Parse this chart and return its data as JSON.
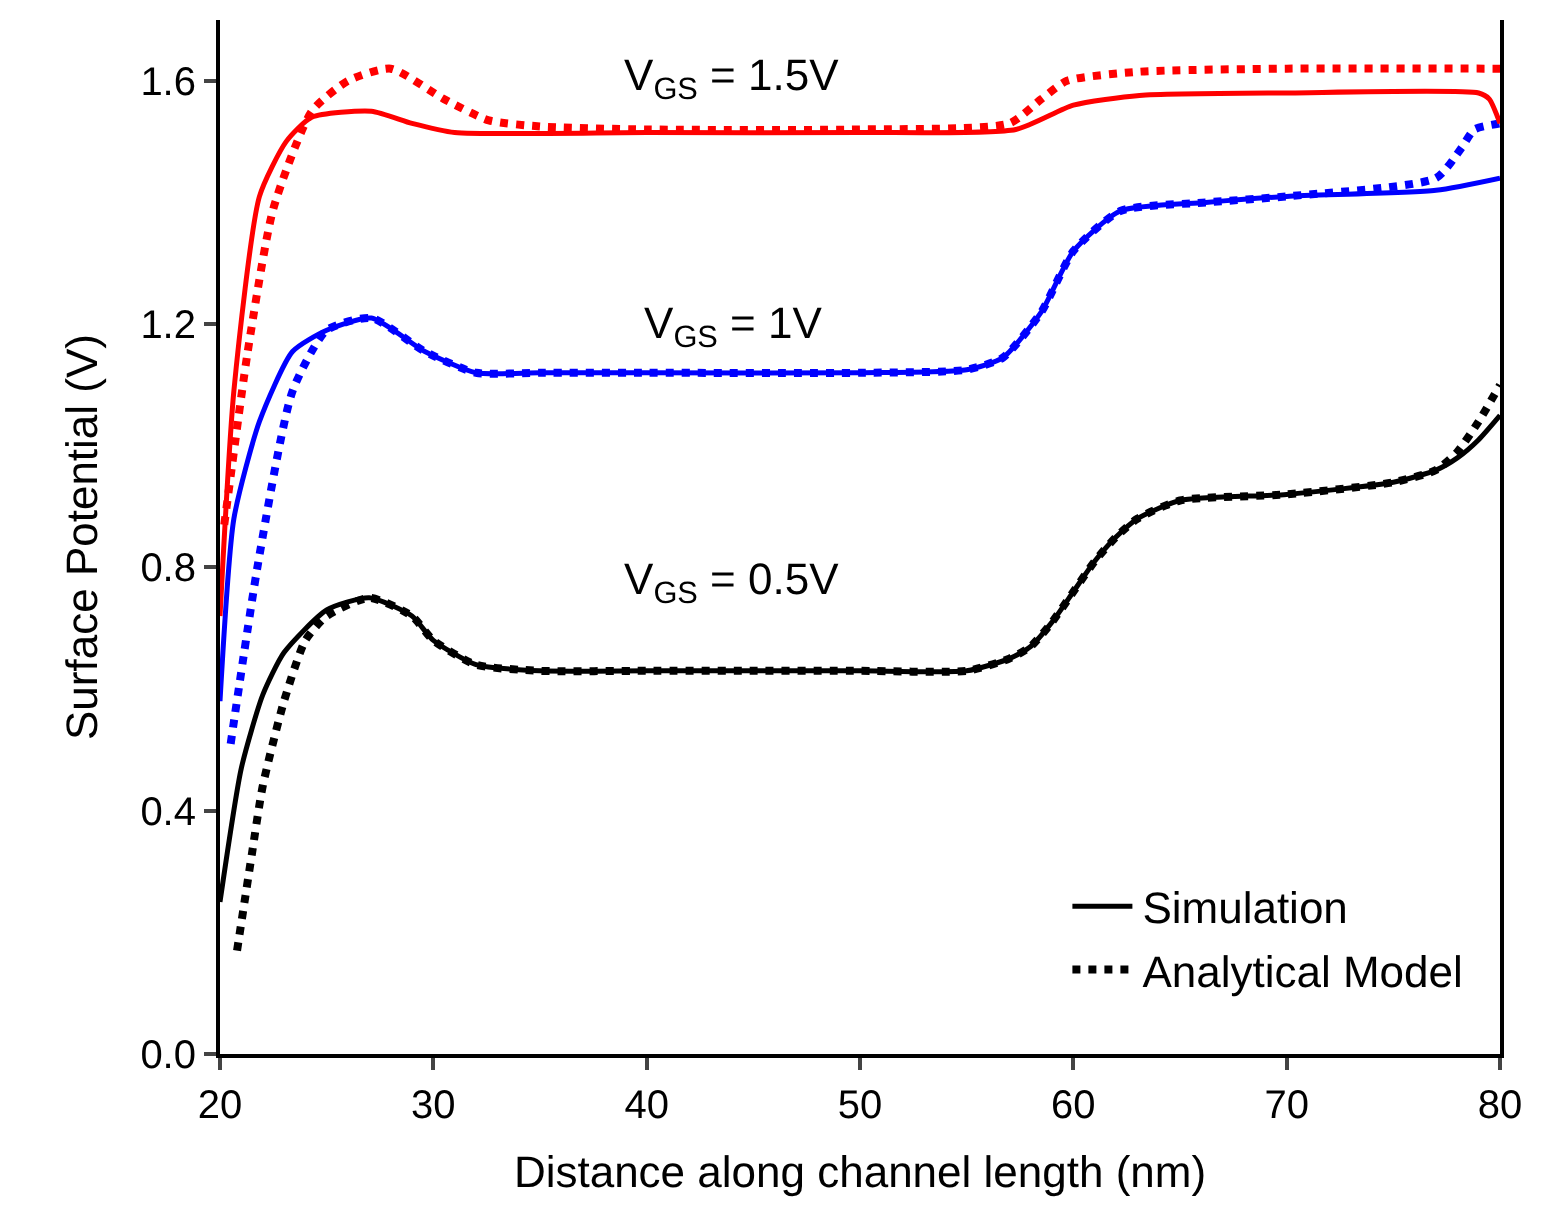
{
  "chart_data": {
    "type": "line",
    "xlabel": "Distance along channel length (nm)",
    "ylabel": "Surface Potential (V)",
    "xlim": [
      20,
      80
    ],
    "xticks": [
      20,
      30,
      40,
      50,
      60,
      70,
      80
    ],
    "ylim": [
      0,
      1.7
    ],
    "yticks": [
      {
        "value": 0,
        "label": "0.0"
      },
      0.4,
      0.8,
      1.2,
      1.6
    ],
    "legend": "bottom right",
    "marker": "none",
    "series": [
      {
        "name": "Simulation",
        "color": "#000000",
        "line_style": "solid",
        "x": [
          20,
          21,
          22,
          23,
          25,
          27,
          29,
          30,
          32,
          35,
          40,
          45,
          50,
          55,
          57,
          58,
          59,
          60,
          61,
          62,
          63,
          65,
          70,
          75,
          77,
          78,
          79,
          80
        ],
        "values": [
          0.25,
          0.47,
          0.59,
          0.66,
          0.73,
          0.75,
          0.72,
          0.68,
          0.64,
          0.63,
          0.63,
          0.63,
          0.63,
          0.63,
          0.65,
          0.67,
          0.71,
          0.76,
          0.81,
          0.85,
          0.88,
          0.91,
          0.92,
          0.94,
          0.96,
          0.98,
          1.01,
          1.05
        ]
      },
      {
        "name": "Analytical Model",
        "color": "#000000",
        "line_style": "dotted",
        "x": [
          20.8,
          21.5,
          22,
          23,
          24,
          25,
          27,
          29,
          30,
          32,
          35,
          40,
          45,
          50,
          55,
          57,
          58,
          59,
          60,
          61,
          62,
          63,
          65,
          70,
          75,
          77,
          78,
          79,
          80
        ],
        "values": [
          0.17,
          0.33,
          0.44,
          0.58,
          0.68,
          0.72,
          0.75,
          0.72,
          0.68,
          0.64,
          0.63,
          0.63,
          0.63,
          0.63,
          0.63,
          0.65,
          0.67,
          0.71,
          0.76,
          0.81,
          0.85,
          0.88,
          0.91,
          0.92,
          0.94,
          0.96,
          0.99,
          1.04,
          1.1
        ]
      },
      {
        "color": "#0000ff",
        "line_style": "solid",
        "x": [
          20,
          20.65,
          21.85,
          23.4,
          25,
          27.1,
          29.6,
          32,
          35,
          40,
          50,
          55,
          56.7,
          58.5,
          60,
          62.2,
          66.2,
          70,
          77,
          80
        ],
        "values": [
          0.58,
          0.88,
          1.04,
          1.155,
          1.19,
          1.21,
          1.155,
          1.12,
          1.12,
          1.12,
          1.12,
          1.125,
          1.145,
          1.22,
          1.32,
          1.386,
          1.4,
          1.41,
          1.42,
          1.44
        ]
      },
      {
        "color": "#0000ff",
        "line_style": "dotted",
        "x": [
          20.5,
          21.8,
          23.4,
          25,
          27.1,
          29.6,
          32,
          35,
          40,
          50,
          55,
          56.7,
          58.5,
          60,
          62.2,
          66.2,
          70,
          77,
          78.2,
          78.8,
          80
        ],
        "values": [
          0.51,
          0.81,
          1.09,
          1.19,
          1.21,
          1.155,
          1.12,
          1.12,
          1.12,
          1.12,
          1.125,
          1.145,
          1.22,
          1.32,
          1.386,
          1.4,
          1.41,
          1.44,
          1.49,
          1.52,
          1.53
        ]
      },
      {
        "color": "#ff0000",
        "line_style": "solid",
        "x": [
          20,
          20.65,
          21.85,
          23.1,
          24.3,
          27.1,
          29,
          31,
          40,
          50,
          57.3,
          60,
          63.1,
          70,
          79,
          79.5,
          80
        ],
        "values": [
          0.72,
          1.09,
          1.41,
          1.5,
          1.54,
          1.55,
          1.53,
          1.515,
          1.515,
          1.515,
          1.52,
          1.56,
          1.576,
          1.58,
          1.58,
          1.57,
          1.53
        ]
      },
      {
        "color": "#ff0000",
        "line_style": "dotted",
        "x": [
          20.2,
          21.3,
          22.5,
          24.3,
          26,
          28,
          30.5,
          32.6,
          35,
          40,
          50,
          57,
          58.5,
          59.7,
          63.1,
          70,
          80
        ],
        "values": [
          0.87,
          1.155,
          1.39,
          1.55,
          1.6,
          1.62,
          1.57,
          1.535,
          1.525,
          1.52,
          1.52,
          1.53,
          1.57,
          1.6,
          1.615,
          1.62,
          1.62
        ]
      }
    ],
    "annotations": [
      "V$_{GS}$ = 1.5V",
      "V$_{GS}$ = 1V",
      "V$_{GS}$ = 0.5V"
    ]
  }
}
